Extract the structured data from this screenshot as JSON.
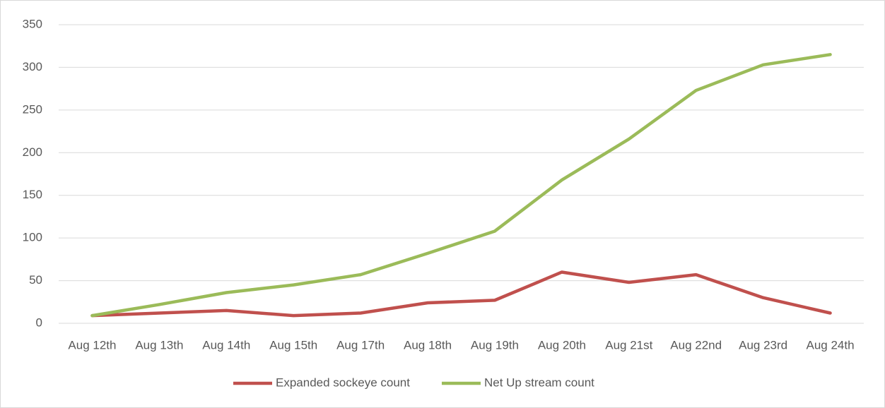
{
  "chart_data": {
    "type": "line",
    "categories": [
      "Aug 12th",
      "Aug 13th",
      "Aug 14th",
      "Aug 15th",
      "Aug 17th",
      "Aug 18th",
      "Aug 19th",
      "Aug 20th",
      "Aug 21st",
      "Aug 22nd",
      "Aug 23rd",
      "Aug 24th"
    ],
    "series": [
      {
        "name": "Expanded sockeye count",
        "color": "#c0504d",
        "values": [
          9,
          12,
          15,
          9,
          12,
          24,
          27,
          60,
          48,
          57,
          30,
          12
        ]
      },
      {
        "name": "Net Up stream count",
        "color": "#9bbb59",
        "values": [
          9,
          22,
          36,
          45,
          57,
          82,
          108,
          168,
          216,
          273,
          303,
          315
        ]
      }
    ],
    "ylim": [
      0,
      350
    ],
    "yticks": [
      0,
      50,
      100,
      150,
      200,
      250,
      300,
      350
    ],
    "grid": true,
    "legend": "bottom"
  }
}
